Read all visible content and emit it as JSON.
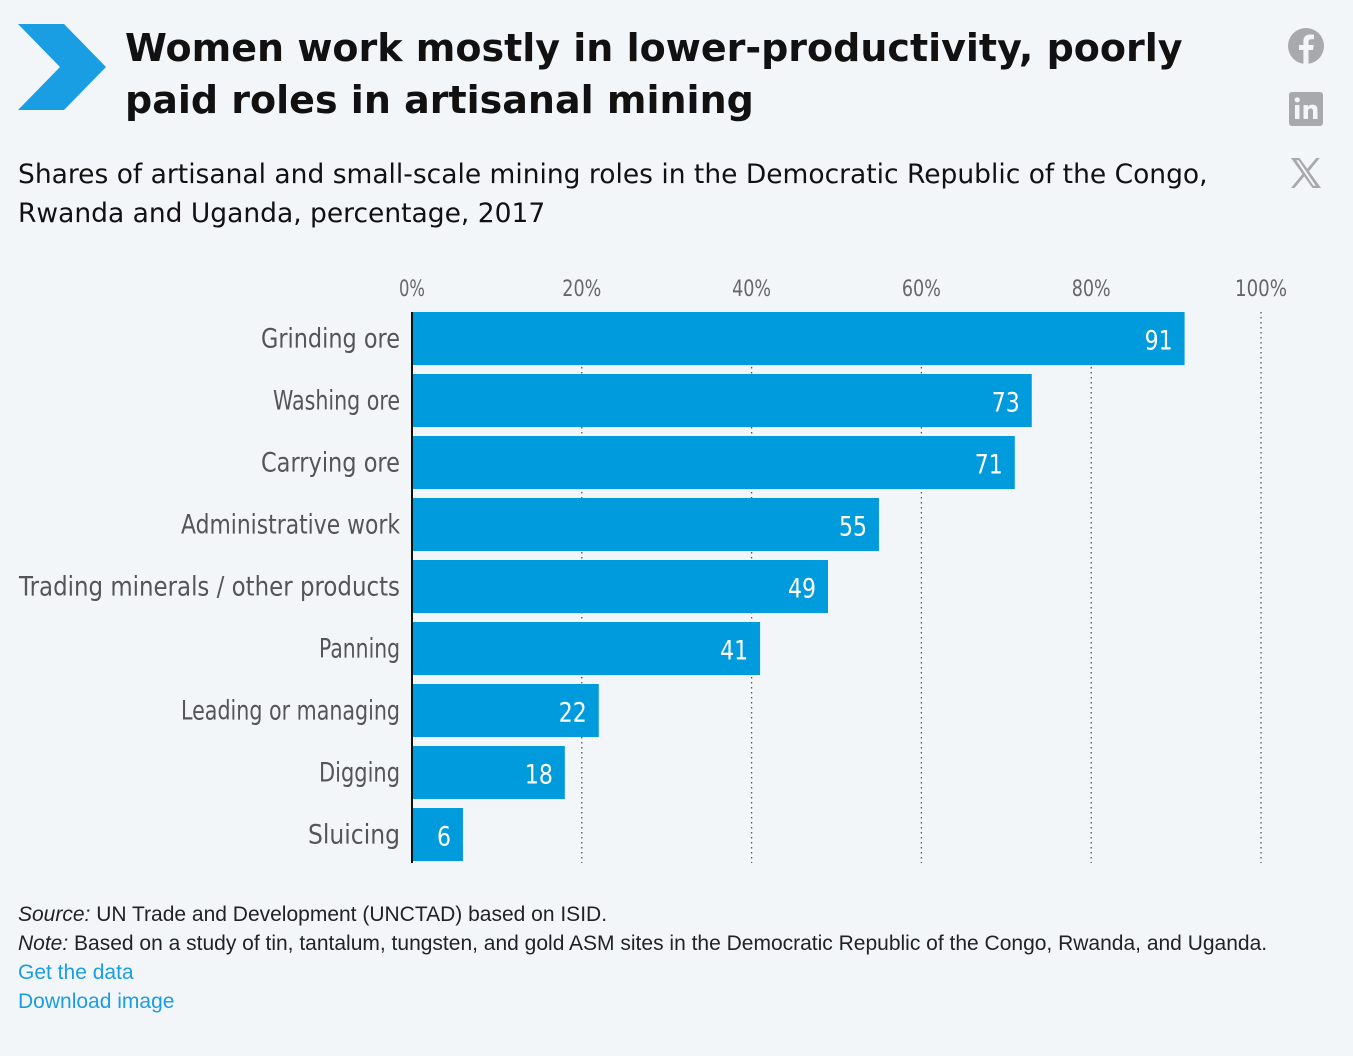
{
  "header": {
    "title": "Women work mostly in lower-productivity, poorly paid roles in artisanal mining",
    "subtitle": "Shares of artisanal and small-scale mining roles in the Democratic Republic of the Congo, Rwanda and Uganda, percentage, 2017"
  },
  "social": {
    "icons": [
      "facebook-icon",
      "linkedin-icon",
      "x-icon"
    ]
  },
  "colors": {
    "accent": "#1a9ee3",
    "bar": "#009bdc",
    "icon": "#a7a9ab",
    "label": "#555555"
  },
  "chart_data": {
    "type": "bar",
    "orientation": "horizontal",
    "title": "",
    "xlabel": "",
    "ylabel": "",
    "xlim": [
      0,
      100
    ],
    "ticks": [
      0,
      20,
      40,
      60,
      80,
      100
    ],
    "tick_labels": [
      "0%",
      "20%",
      "40%",
      "60%",
      "80%",
      "100%"
    ],
    "grid": "vertical dotted",
    "categories": [
      "Grinding ore",
      "Washing ore",
      "Carrying ore",
      "Administrative work",
      "Trading minerals / other products",
      "Panning",
      "Leading or managing",
      "Digging",
      "Sluicing"
    ],
    "values": [
      91,
      73,
      71,
      55,
      49,
      41,
      22,
      18,
      6
    ]
  },
  "footer": {
    "source_label": "Source:",
    "source_text": " UN Trade and Development (UNCTAD) based on ISID.",
    "note_label": "Note:",
    "note_text": " Based on a study of tin, tantalum, tungsten, and gold ASM sites in the Democratic Republic of the Congo, Rwanda, and Uganda.",
    "get_data_link": "Get the data",
    "download_link": "Download image"
  }
}
